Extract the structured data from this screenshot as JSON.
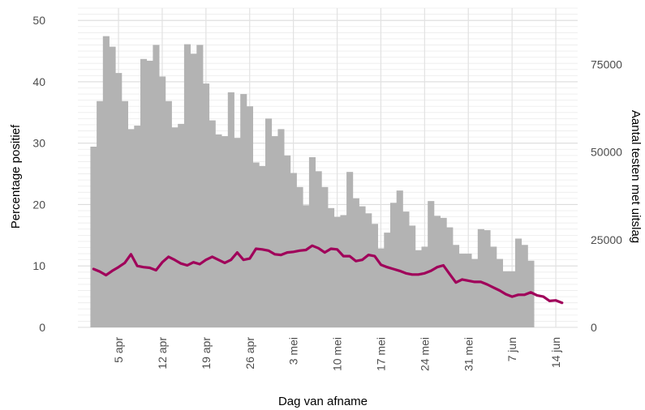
{
  "chart_data": {
    "type": "bar+line",
    "xlabel": "Dag van afname",
    "ylabel_left": "Percentage positief",
    "ylabel_right": "Aantal testen met uitslag",
    "x_tick_labels": [
      "5 apr",
      "12 apr",
      "19 apr",
      "26 apr",
      "3 mei",
      "10 mei",
      "17 mei",
      "24 mei",
      "31 mei",
      "7 jun",
      "14 jun"
    ],
    "x_tick_day_index": [
      4,
      11,
      18,
      25,
      32,
      39,
      46,
      53,
      60,
      67,
      74
    ],
    "left_axis": {
      "range": [
        0,
        52
      ],
      "ticks": [
        "0",
        "10",
        "20",
        "30",
        "40",
        "50"
      ],
      "tick_values": [
        0,
        10,
        20,
        30,
        40,
        50
      ]
    },
    "right_axis": {
      "range": [
        0,
        91000
      ],
      "ticks": [
        "0",
        "25000",
        "50000",
        "75000"
      ],
      "tick_values": [
        0,
        25000,
        50000,
        75000
      ]
    },
    "grid": true,
    "bars": {
      "name": "Aantal testen met uitslag",
      "axis": "right",
      "color": "#b3b3b3",
      "start_day_index": 0,
      "values": [
        51500,
        64500,
        83000,
        80000,
        72500,
        64500,
        56500,
        57500,
        76500,
        76000,
        80500,
        71500,
        64500,
        57000,
        58000,
        80700,
        78000,
        80500,
        69500,
        59000,
        55000,
        54500,
        67000,
        54000,
        66500,
        63000,
        47000,
        46000,
        59500,
        54500,
        56500,
        49000,
        44000,
        40000,
        34800,
        48500,
        44500,
        40000,
        34000,
        31500,
        32000,
        44300,
        36800,
        34500,
        32500,
        29500,
        22500,
        27000,
        35500,
        39000,
        33000,
        29000,
        22000,
        23000,
        36000,
        31800,
        31200,
        28500,
        23500,
        21000,
        21000,
        19500,
        28000,
        27700,
        23000,
        19500,
        16000,
        16000,
        25300,
        23500,
        19000
      ]
    },
    "line": {
      "name": "Percentage positief",
      "axis": "left",
      "color": "#a0005a",
      "start_day_index": 0,
      "values": [
        9.5,
        9.1,
        8.5,
        9.2,
        9.8,
        10.5,
        11.9,
        10.0,
        9.8,
        9.7,
        9.3,
        10.6,
        11.5,
        11.0,
        10.4,
        10.1,
        10.6,
        10.3,
        11.0,
        11.5,
        11.0,
        10.5,
        11.0,
        12.2,
        11.0,
        11.2,
        12.8,
        12.7,
        12.5,
        11.9,
        11.8,
        12.2,
        12.3,
        12.5,
        12.6,
        13.3,
        12.9,
        12.2,
        12.8,
        12.7,
        11.6,
        11.6,
        10.8,
        11.0,
        11.8,
        11.6,
        10.2,
        9.8,
        9.5,
        9.2,
        8.8,
        8.6,
        8.6,
        8.8,
        9.2,
        9.8,
        10.1,
        8.7,
        7.3,
        7.8,
        7.6,
        7.4,
        7.4,
        7.0,
        6.5,
        6.0,
        5.4,
        5.0,
        5.3,
        5.3,
        5.7,
        5.2,
        5.0,
        4.3,
        4.4,
        4.0
      ]
    }
  }
}
